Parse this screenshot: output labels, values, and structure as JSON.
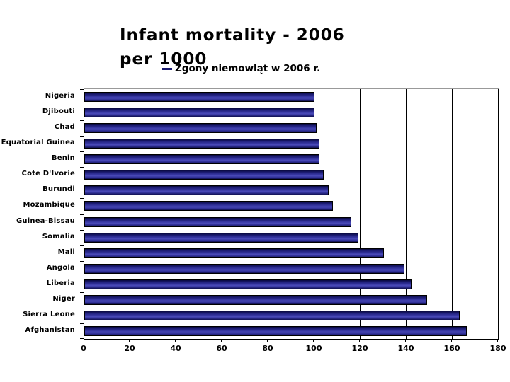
{
  "page": {
    "background": "#ffffff"
  },
  "title": {
    "line1": "Infant mortality - 2006",
    "line2": "per 1000"
  },
  "legend": {
    "label": "Zgony niemowląt w 2006 r.",
    "marker_color": "#1a1a70"
  },
  "chart_data": {
    "type": "bar",
    "orientation": "horizontal",
    "title": "Infant mortality - 2006 per 1000",
    "series_name": "Zgony niemowląt w 2006 r.",
    "categories": [
      "Nigeria",
      "Djibouti",
      "Chad",
      "Equatorial Guinea",
      "Benin",
      "Cote D'Ivorie",
      "Burundi",
      "Mozambique",
      "Guinea-Bissau",
      "Somalia",
      "Mali",
      "Angola",
      "Liberia",
      "Niger",
      "Sierra Leone",
      "Afghanistan"
    ],
    "values": [
      100,
      100,
      101,
      102,
      102,
      104,
      106,
      108,
      116,
      119,
      130,
      139,
      142,
      149,
      163,
      166
    ],
    "xlim": [
      0,
      180
    ],
    "x_ticks": [
      0,
      20,
      40,
      60,
      80,
      100,
      120,
      140,
      160,
      180
    ],
    "grid": "vertical",
    "legend_position": "top",
    "bar_color": "#2e2e94",
    "bar_gradient_edge": "#10104e",
    "bar_gradient_mid": "#4a4ab8",
    "gridline_color": "#000000",
    "plot_top_border_color": "#999999",
    "axis_color": "#000000",
    "text_color": "#000000"
  }
}
